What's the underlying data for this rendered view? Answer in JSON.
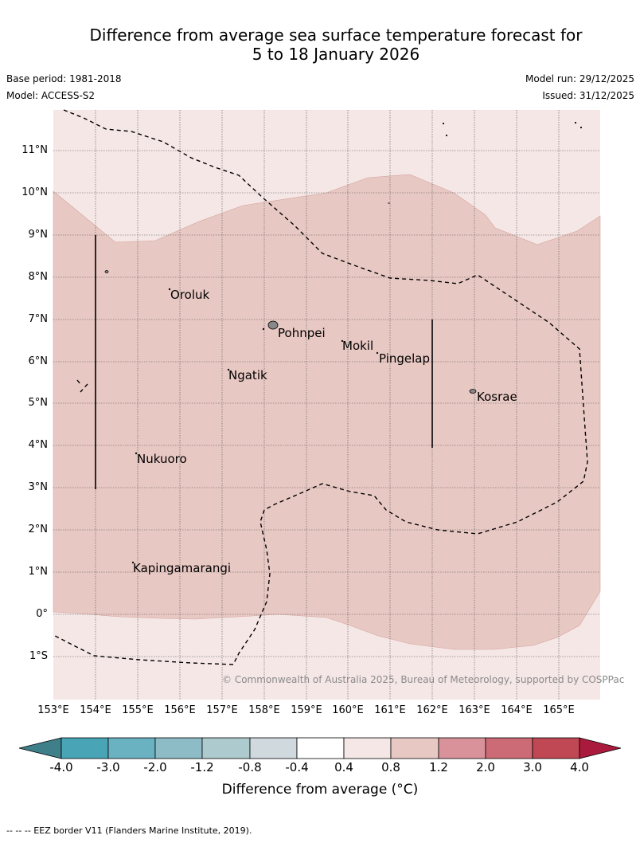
{
  "title_line1": "Difference from average sea surface temperature forecast for",
  "title_line2": "5 to 18 January 2026",
  "base_period": "Base period: 1981-2018",
  "model": "Model: ACCESS-S2",
  "model_run": "Model run: 29/12/2025",
  "issued": "Issued: 31/12/2025",
  "lat_labels": [
    "11°N",
    "10°N",
    "9°N",
    "8°N",
    "7°N",
    "6°N",
    "5°N",
    "4°N",
    "3°N",
    "2°N",
    "1°N",
    "0°",
    "1°S"
  ],
  "lon_labels": [
    "153°E",
    "154°E",
    "155°E",
    "156°E",
    "157°E",
    "158°E",
    "159°E",
    "160°E",
    "161°E",
    "162°E",
    "163°E",
    "164°E",
    "165°E"
  ],
  "places": [
    {
      "name": "Oroluk"
    },
    {
      "name": "Pohnpei"
    },
    {
      "name": "Mokil"
    },
    {
      "name": "Pingelap"
    },
    {
      "name": "Ngatik"
    },
    {
      "name": "Kosrae"
    },
    {
      "name": "Nukuoro"
    },
    {
      "name": "Kapingamarangi"
    }
  ],
  "copyright": "© Commonwealth of Australia 2025, Bureau of Meteorology, supported by COSPPac",
  "colorbar": {
    "title": "Difference from average (°C)",
    "ticks": [
      "-4.0",
      "-3.0",
      "-2.0",
      "-1.2",
      "-0.8",
      "-0.4",
      "0.4",
      "0.8",
      "1.2",
      "2.0",
      "3.0",
      "4.0"
    ],
    "colors": [
      "#3f7f8a",
      "#49a5b6",
      "#6ab2c2",
      "#8dbcc6",
      "#adcbce",
      "#cfd9de",
      "#ffffff",
      "#f5e7e6",
      "#e8c8c3",
      "#d9929a",
      "#cc6b75",
      "#c04754",
      "#aa1a3c"
    ]
  },
  "anomaly_colors": {
    "light": "#f5e7e6",
    "medium": "#e8c8c3"
  },
  "footnote": "--  --  -- EEZ border V11 (Flanders Marine Institute, 2019)."
}
